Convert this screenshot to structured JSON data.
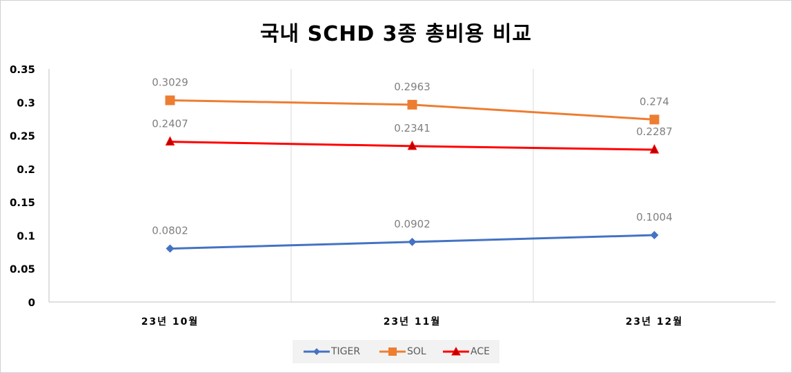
{
  "chart_data": {
    "type": "line",
    "title": "국내 SCHD 3종 총비용 비교",
    "categories": [
      "23년 10월",
      "23년 11월",
      "23년 12월"
    ],
    "ylim": [
      0,
      0.35
    ],
    "yticks": [
      "0",
      "0.05",
      "0.1",
      "0.15",
      "0.2",
      "0.25",
      "0.3",
      "0.35"
    ],
    "grid": "vertical",
    "legend": "bottom",
    "series": [
      {
        "name": "TIGER",
        "values": [
          0.0802,
          0.0902,
          0.1004
        ],
        "labels": [
          "0.0802",
          "0.0902",
          "0.1004"
        ],
        "color": "#4472c4",
        "marker": "diamond"
      },
      {
        "name": "SOL",
        "values": [
          0.3029,
          0.2963,
          0.274
        ],
        "labels": [
          "0.3029",
          "0.2963",
          "0.274"
        ],
        "color": "#ed7d31",
        "marker": "square"
      },
      {
        "name": "ACE",
        "values": [
          0.2407,
          0.2341,
          0.2287
        ],
        "labels": [
          "0.2407",
          "0.2341",
          "0.2287"
        ],
        "color": "#ff0000",
        "marker": "triangle"
      }
    ]
  }
}
